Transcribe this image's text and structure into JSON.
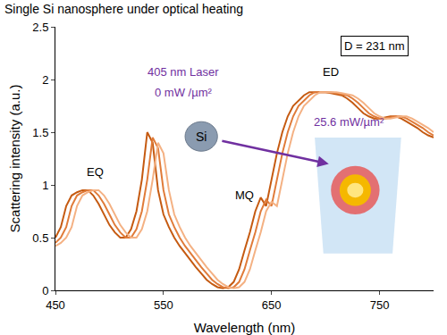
{
  "chart_data": {
    "type": "line",
    "title": "Single Si nanosphere under optical heating",
    "x_label": "Wavelength (nm)",
    "y_label": "Scattering intensity (a.u.)",
    "x": [
      450,
      455,
      460,
      465,
      470,
      475,
      480,
      485,
      490,
      495,
      500,
      505,
      510,
      515,
      520,
      525,
      530,
      535,
      540,
      545,
      550,
      555,
      560,
      565,
      570,
      575,
      580,
      585,
      590,
      595,
      600,
      605,
      610,
      615,
      620,
      625,
      630,
      635,
      640,
      645,
      650,
      655,
      660,
      665,
      670,
      675,
      680,
      685,
      690,
      695,
      700,
      705,
      710,
      715,
      720,
      725,
      730,
      735,
      740,
      745,
      750,
      755,
      760,
      765,
      770,
      775,
      780,
      785,
      790,
      795,
      800
    ],
    "series": [
      {
        "color": "#c55a11",
        "values": [
          0.5,
          0.6,
          0.8,
          0.9,
          0.93,
          0.95,
          0.95,
          0.9,
          0.82,
          0.72,
          0.62,
          0.55,
          0.5,
          0.5,
          0.58,
          0.75,
          1.05,
          1.5,
          1.4,
          0.95,
          0.72,
          0.6,
          0.5,
          0.42,
          0.35,
          0.28,
          0.22,
          0.16,
          0.1,
          0.06,
          0.03,
          0.02,
          0.03,
          0.08,
          0.2,
          0.38,
          0.55,
          0.75,
          0.88,
          0.8,
          1.05,
          1.3,
          1.5,
          1.65,
          1.75,
          1.8,
          1.85,
          1.88,
          1.88,
          1.88,
          1.88,
          1.87,
          1.86,
          1.85,
          1.82,
          1.78,
          1.73,
          1.68,
          1.65,
          1.63,
          1.63,
          1.64,
          1.65,
          1.65,
          1.63,
          1.6,
          1.57,
          1.54,
          1.5,
          1.47,
          1.45
        ]
      },
      {
        "color": "#e07b39",
        "values": [
          0.45,
          0.5,
          0.6,
          0.8,
          0.9,
          0.93,
          0.95,
          0.95,
          0.9,
          0.82,
          0.72,
          0.62,
          0.55,
          0.5,
          0.5,
          0.58,
          0.75,
          1.05,
          1.45,
          1.35,
          0.95,
          0.72,
          0.6,
          0.5,
          0.42,
          0.35,
          0.28,
          0.22,
          0.16,
          0.1,
          0.06,
          0.03,
          0.02,
          0.03,
          0.08,
          0.2,
          0.38,
          0.55,
          0.75,
          0.86,
          0.8,
          1.05,
          1.3,
          1.5,
          1.65,
          1.75,
          1.8,
          1.85,
          1.88,
          1.88,
          1.88,
          1.88,
          1.87,
          1.86,
          1.85,
          1.82,
          1.78,
          1.73,
          1.68,
          1.65,
          1.63,
          1.63,
          1.64,
          1.65,
          1.65,
          1.63,
          1.6,
          1.57,
          1.54,
          1.5,
          1.47
        ]
      },
      {
        "color": "#f4b183",
        "values": [
          0.42,
          0.45,
          0.5,
          0.6,
          0.8,
          0.9,
          0.93,
          0.95,
          0.95,
          0.9,
          0.82,
          0.72,
          0.62,
          0.55,
          0.5,
          0.5,
          0.58,
          0.75,
          1.05,
          1.4,
          1.3,
          0.95,
          0.72,
          0.6,
          0.5,
          0.42,
          0.35,
          0.28,
          0.22,
          0.16,
          0.1,
          0.06,
          0.03,
          0.02,
          0.03,
          0.08,
          0.2,
          0.38,
          0.55,
          0.75,
          0.84,
          0.8,
          1.05,
          1.3,
          1.5,
          1.65,
          1.75,
          1.8,
          1.85,
          1.88,
          1.88,
          1.88,
          1.88,
          1.87,
          1.86,
          1.85,
          1.82,
          1.78,
          1.73,
          1.68,
          1.65,
          1.63,
          1.63,
          1.64,
          1.65,
          1.65,
          1.63,
          1.6,
          1.57,
          1.54,
          1.5
        ]
      }
    ],
    "xlim": [
      450,
      800
    ],
    "xticks": [
      450,
      550,
      650,
      750
    ],
    "ylim": [
      0,
      2.5
    ],
    "yticks": [
      0,
      0.5,
      1,
      1.5,
      2,
      2.5
    ],
    "grid": false,
    "annotations": [
      "D = 231 nm",
      "EQ",
      "MQ",
      "ED",
      "405 nm Laser",
      "0 mW /µm²",
      "Si",
      "25.6 mW/µm²"
    ]
  }
}
